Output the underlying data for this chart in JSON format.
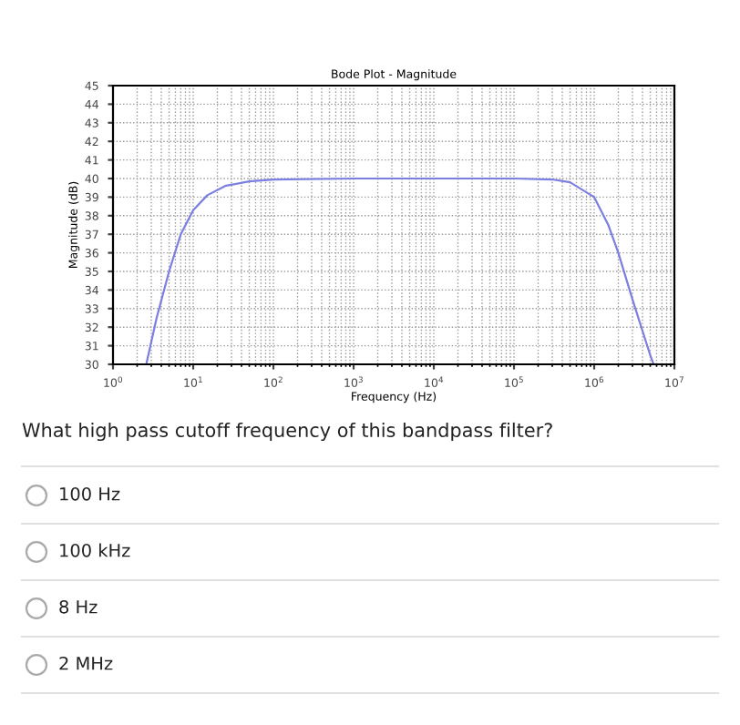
{
  "chart_data": {
    "type": "line",
    "title": "Bode Plot - Magnitude",
    "xlabel": "Frequency (Hz)",
    "ylabel": "Magnitude (dB)",
    "log": "x",
    "grid": true,
    "marker": "none",
    "line_style": "solid",
    "xlim": [
      1,
      10000000
    ],
    "ylim": [
      30,
      45
    ],
    "xticks": [
      {
        "value": 1,
        "label": "10$^{0}$"
      },
      {
        "value": 10,
        "label": "10$^{1}$"
      },
      {
        "value": 100,
        "label": "10$^{2}$"
      },
      {
        "value": 1000,
        "label": "10$^{3}$"
      },
      {
        "value": 10000,
        "label": "10$^{4}$"
      },
      {
        "value": 100000,
        "label": "10$^{5}$"
      },
      {
        "value": 1000000,
        "label": "10$^{6}$"
      },
      {
        "value": 10000000,
        "label": "10$^{7}$"
      }
    ],
    "yticks": [
      30,
      31,
      32,
      33,
      34,
      35,
      36,
      37,
      38,
      39,
      40,
      41,
      42,
      43,
      44,
      45
    ],
    "x": [
      2.6,
      3.5,
      5,
      7,
      10,
      15,
      25,
      50,
      100,
      1000,
      100000,
      300000,
      500000,
      1000000,
      1500000,
      2000000,
      3000000,
      4000000,
      5000000,
      5500000
    ],
    "series": [
      {
        "color": "#7b7fe0",
        "values": [
          30,
          32.5,
          35,
          37,
          38.3,
          39.1,
          39.6,
          39.85,
          39.95,
          40,
          40,
          39.95,
          39.8,
          39,
          37.5,
          36,
          33.5,
          31.8,
          30.5,
          30
        ]
      }
    ],
    "annotations": [
      "What high pass cutoff frequency of this bandpass filter?",
      "100 Hz",
      "100 kHz",
      "8 Hz",
      "2 MHz"
    ]
  }
}
